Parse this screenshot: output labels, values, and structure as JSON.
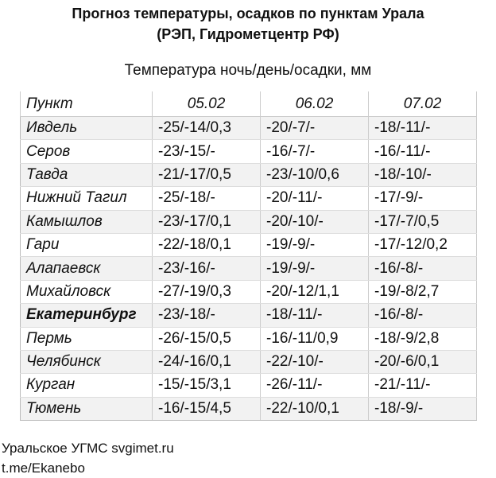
{
  "title": [
    "Прогноз температуры, осадков по пунктам Урала",
    "(РЭП, Гидрометцентр РФ)"
  ],
  "subtitle": "Температура ночь/день/осадки, мм",
  "table": {
    "headers": [
      "Пункт",
      "05.02",
      "06.02",
      "07.02"
    ],
    "rows": [
      [
        "Ивдель",
        "-25/-14/0,3",
        "-20/-7/-",
        "-18/-11/-"
      ],
      [
        "Серов",
        "-23/-15/-",
        "-16/-7/-",
        "-16/-11/-"
      ],
      [
        "Тавда",
        "-21/-17/0,5",
        "-23/-10/0,6",
        "-18/-10/-"
      ],
      [
        "Нижний Тагил",
        "-25/-18/-",
        "-20/-11/-",
        "-17/-9/-"
      ],
      [
        "Камышлов",
        "-23/-17/0,1",
        "-20/-10/-",
        "-17/-7/0,5"
      ],
      [
        "Гари",
        "-22/-18/0,1",
        "-19/-9/-",
        "-17/-12/0,2"
      ],
      [
        "Алапаевск",
        "-23/-16/-",
        "-19/-9/-",
        "-16/-8/-"
      ],
      [
        "Михайловск",
        "-27/-19/0,3",
        "-20/-12/1,1",
        "-19/-8/2,7"
      ],
      [
        "Екатеринбург",
        "-23/-18/-",
        "-18/-11/-",
        "-16/-8/-"
      ],
      [
        "Пермь",
        "-26/-15/0,5",
        "-16/-11/0,9",
        "-18/-9/2,8"
      ],
      [
        "Челябинск",
        "-24/-16/0,1",
        "-22/-10/-",
        "-20/-6/0,1"
      ],
      [
        "Курган",
        "-15/-15/3,1",
        "-26/-11/-",
        "-21/-11/-"
      ],
      [
        "Тюмень",
        "-16/-15/4,5",
        "-22/-10/0,1",
        "-18/-9/-"
      ]
    ],
    "bold_row": "Екатеринбург"
  },
  "footer": [
    "Уральское УГМС svgimet.ru",
    "t.me/Ekanebo"
  ]
}
